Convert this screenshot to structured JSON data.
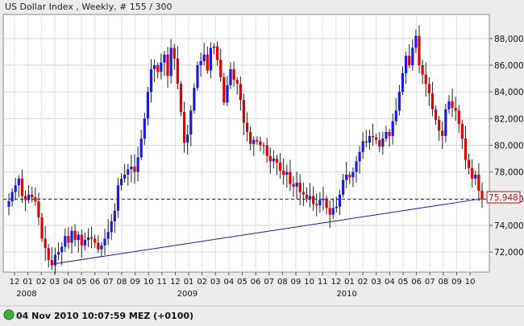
{
  "chart_data": {
    "type": "candlestick",
    "title": "US Dollar Index , Weekly, # 155 / 300",
    "current_value_label": "75,948",
    "ylim": [
      70.5,
      89.8
    ],
    "y_ticks": [
      {
        "value": 72,
        "label": "72,000"
      },
      {
        "value": 74,
        "label": "74,000"
      },
      {
        "value": 76,
        "label": "76,000"
      },
      {
        "value": 78,
        "label": "78,000"
      },
      {
        "value": 80,
        "label": "80,000"
      },
      {
        "value": 82,
        "label": "82,000"
      },
      {
        "value": 84,
        "label": "84,000"
      },
      {
        "value": 86,
        "label": "86,000"
      },
      {
        "value": 88,
        "label": "88,000"
      }
    ],
    "month_ticks": [
      "12",
      "01",
      "02",
      "03",
      "04",
      "05",
      "06",
      "07",
      "08",
      "09",
      "10",
      "11",
      "12",
      "01",
      "02",
      "03",
      "04",
      "05",
      "06",
      "07",
      "08",
      "09",
      "10",
      "11",
      "12",
      "01",
      "02",
      "03",
      "04",
      "05",
      "06",
      "07",
      "08",
      "09",
      "10"
    ],
    "year_labels": [
      "2008",
      "2009",
      "2010"
    ],
    "horizontal_level": 75.95,
    "trendline": [
      72.0,
      76.0
    ],
    "grid": true,
    "close_series": [
      75.8,
      76.5,
      77.0,
      77.5,
      76.2,
      75.9,
      76.3,
      76.1,
      75.8,
      74.6,
      73.0,
      72.3,
      71.4,
      71.0,
      71.8,
      72.0,
      72.4,
      73.2,
      72.7,
      73.6,
      72.9,
      73.3,
      72.5,
      72.9,
      73.1,
      73.0,
      72.7,
      72.2,
      72.5,
      73.0,
      73.5,
      74.3,
      75.1,
      77.0,
      77.5,
      77.8,
      78.2,
      78.4,
      78.0,
      79.1,
      80.5,
      82.0,
      84.0,
      85.7,
      86.0,
      85.5,
      86.2,
      86.8,
      85.2,
      87.3,
      86.5,
      84.6,
      82.5,
      80.2,
      80.8,
      82.6,
      84.3,
      86.0,
      86.3,
      86.8,
      85.6,
      87.3,
      87.4,
      86.4,
      85.1,
      83.2,
      84.5,
      85.7,
      84.9,
      84.6,
      83.4,
      81.7,
      81.0,
      80.1,
      80.4,
      80.3,
      80.0,
      80.0,
      79.2,
      78.8,
      79.0,
      78.7,
      78.1,
      77.8,
      78.0,
      77.1,
      76.9,
      77.2,
      76.5,
      76.3,
      76.0,
      76.2,
      75.6,
      75.5,
      75.9,
      76.0,
      75.3,
      74.8,
      75.3,
      75.4,
      76.3,
      77.4,
      77.8,
      77.6,
      78.0,
      78.8,
      79.5,
      80.3,
      80.2,
      80.7,
      80.6,
      80.4,
      79.9,
      80.5,
      81.0,
      80.7,
      81.8,
      82.6,
      84.0,
      85.4,
      86.7,
      86.0,
      87.3,
      88.2,
      86.0,
      85.3,
      84.6,
      83.9,
      82.7,
      81.9,
      81.1,
      80.7,
      82.7,
      83.3,
      82.8,
      82.6,
      81.6,
      80.5,
      78.9,
      78.3,
      77.5,
      77.8,
      76.6,
      75.95
    ]
  }
}
